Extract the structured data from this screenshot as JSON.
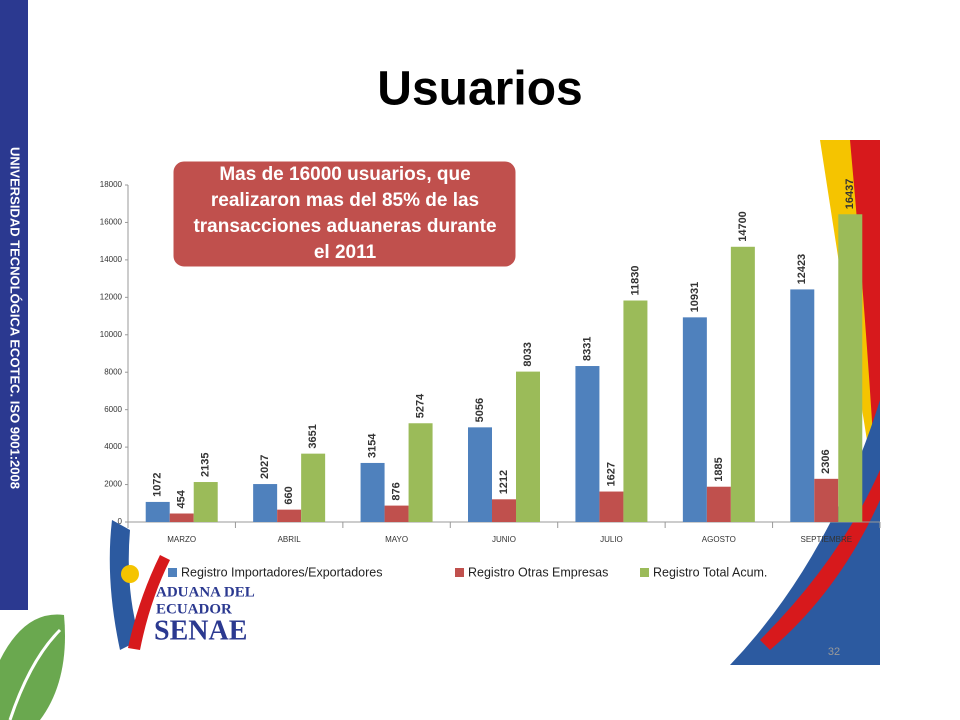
{
  "sidebar_text": "UNIVERSIDAD TECNOLÓGICA ECOTEC. ISO 9001:2008",
  "logo": {
    "line1": "ADUANA DEL",
    "line2": "ECUADOR",
    "line3": "SENAE"
  },
  "page_number": "32",
  "chart_data": {
    "type": "bar",
    "title": "Usuarios",
    "annotation": [
      "Mas de 16000 usuarios, que",
      "realizaron mas del 85% de las",
      "transacciones aduaneras durante",
      "el 2011"
    ],
    "categories": [
      "MARZO",
      "ABRIL",
      "MAYO",
      "JUNIO",
      "JULIO",
      "AGOSTO",
      "SEPTIEMBRE"
    ],
    "series": [
      {
        "name": "Registro Importadores/Exportadores",
        "color": "#4f81bd",
        "values": [
          1072,
          2027,
          3154,
          5056,
          8331,
          10931,
          12423
        ]
      },
      {
        "name": "Registro  Otras Empresas",
        "color": "#c0504d",
        "values": [
          454,
          660,
          876,
          1212,
          1627,
          1885,
          2306
        ]
      },
      {
        "name": "Registro Total Acum.",
        "color": "#9bbb59",
        "values": [
          2135,
          3651,
          5274,
          8033,
          11830,
          14700,
          16437
        ]
      }
    ],
    "ylim": [
      0,
      18000
    ],
    "yticks": [
      0,
      2000,
      4000,
      6000,
      8000,
      10000,
      12000,
      14000,
      16000,
      18000
    ],
    "legend": "bottom"
  }
}
